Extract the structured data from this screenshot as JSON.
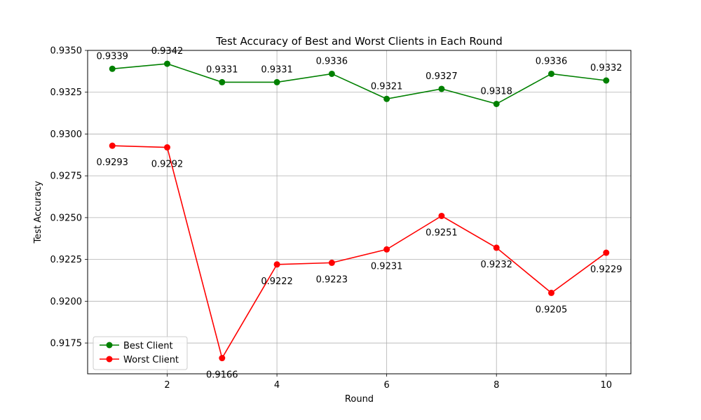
{
  "chart_data": {
    "type": "line",
    "title": "Test Accuracy of Best and Worst Clients in Each Round",
    "xlabel": "Round",
    "ylabel": "Test Accuracy",
    "x": [
      1,
      2,
      3,
      4,
      5,
      6,
      7,
      8,
      9,
      10
    ],
    "xlim": [
      0.55,
      10.45
    ],
    "ylim": [
      0.91566,
      0.935
    ],
    "xticks": [
      2,
      4,
      6,
      8,
      10
    ],
    "xtick_labels": [
      "2",
      "4",
      "6",
      "8",
      "10"
    ],
    "yticks": [
      0.9175,
      0.92,
      0.9225,
      0.925,
      0.9275,
      0.93,
      0.9325,
      0.935
    ],
    "ytick_labels": [
      "0.9175",
      "0.9200",
      "0.9225",
      "0.9250",
      "0.9275",
      "0.9300",
      "0.9325",
      "0.9350"
    ],
    "grid": true,
    "legend_position": "lower-left",
    "series": [
      {
        "name": "Best Client",
        "color": "#008000",
        "values": [
          0.9339,
          0.9342,
          0.9331,
          0.9331,
          0.9336,
          0.9321,
          0.9327,
          0.9318,
          0.9336,
          0.9332
        ],
        "labels": [
          "0.9339",
          "0.9342",
          "0.9331",
          "0.9331",
          "0.9336",
          "0.9321",
          "0.9327",
          "0.9318",
          "0.9336",
          "0.9332"
        ]
      },
      {
        "name": "Worst Client",
        "color": "#ff0000",
        "values": [
          0.9293,
          0.9292,
          0.9166,
          0.9222,
          0.9223,
          0.9231,
          0.9251,
          0.9232,
          0.9205,
          0.9229
        ],
        "labels": [
          "0.9293",
          "0.9292",
          "0.9166",
          "0.9222",
          "0.9223",
          "0.9231",
          "0.9251",
          "0.9232",
          "0.9205",
          "0.9229"
        ]
      }
    ]
  }
}
